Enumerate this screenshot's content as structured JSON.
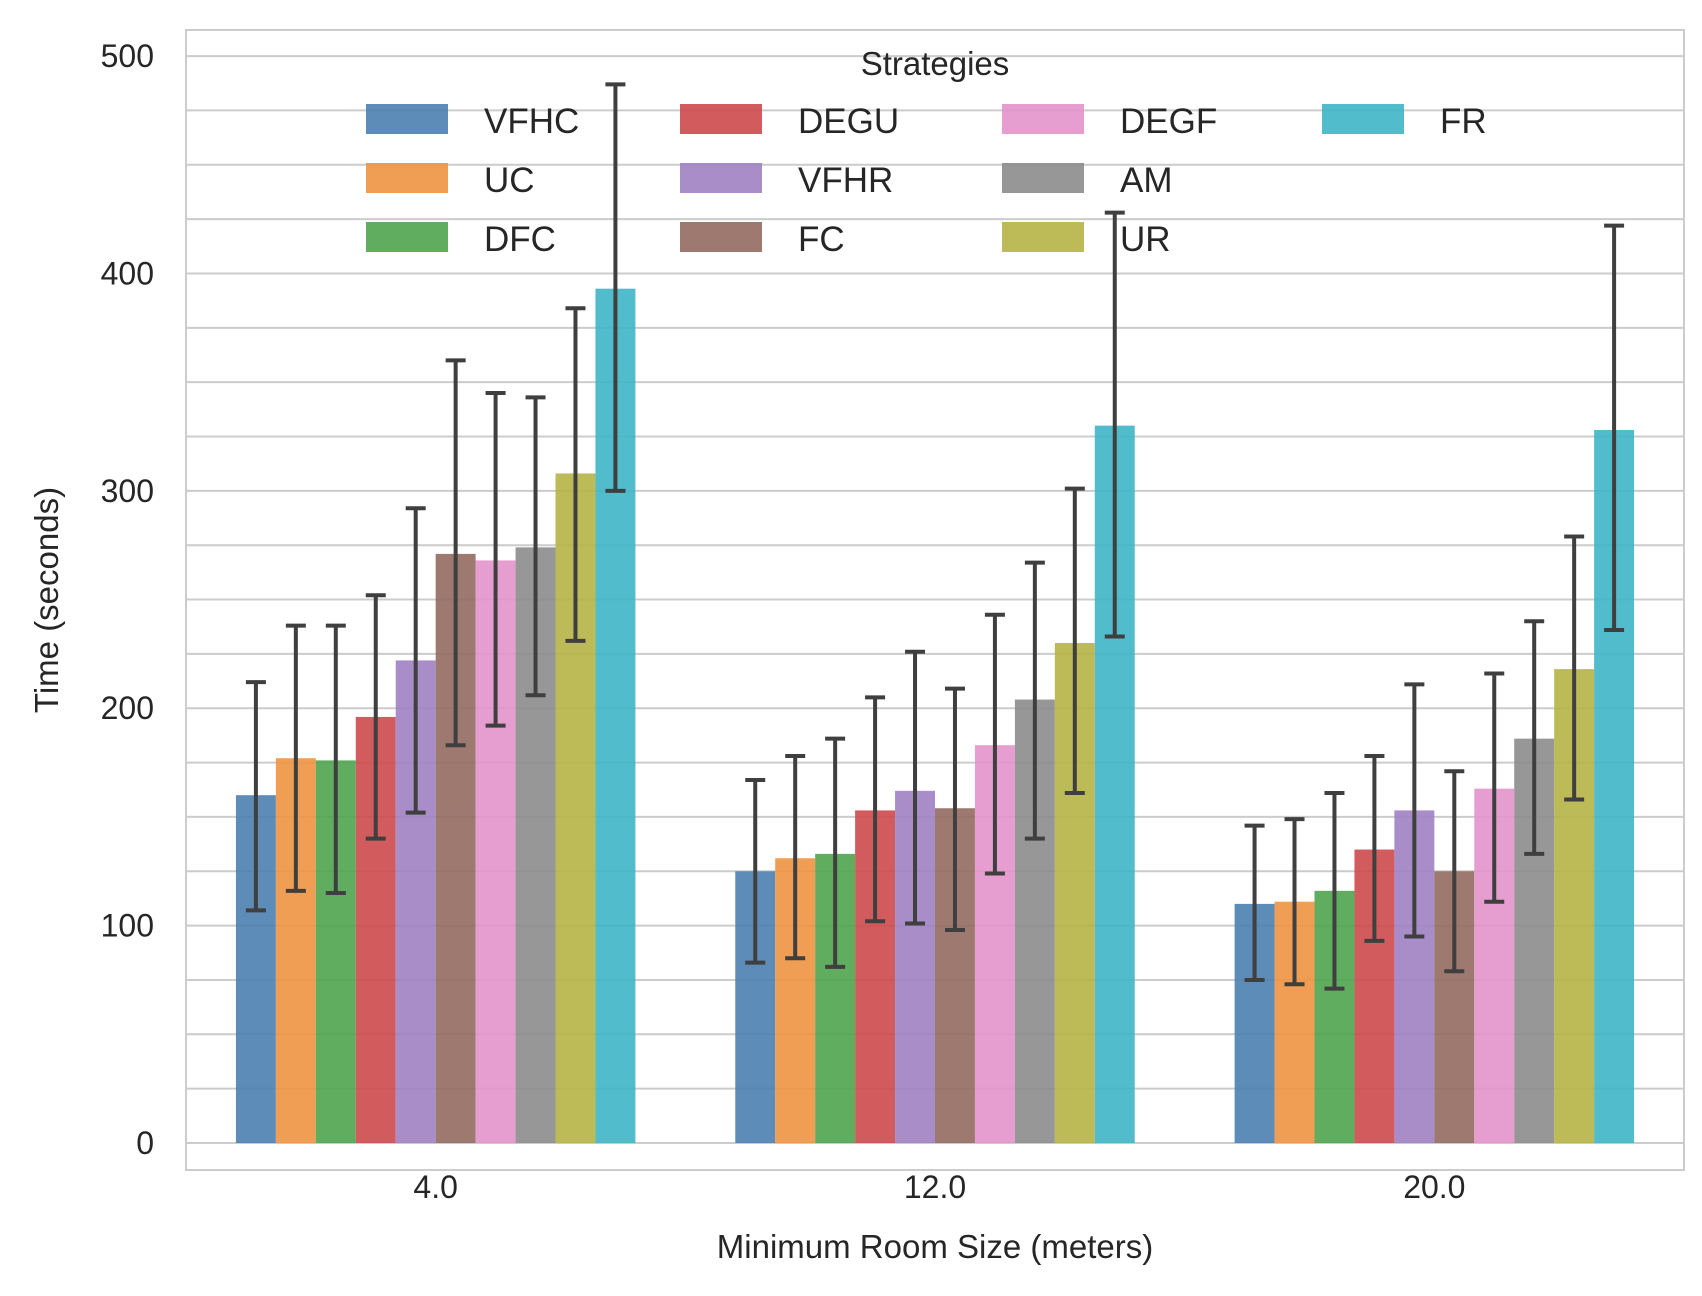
{
  "chart_data": {
    "type": "bar",
    "xlabel": "Minimum Room Size (meters)",
    "ylabel": "Time (seconds)",
    "categories": [
      "4.0",
      "12.0",
      "20.0"
    ],
    "ylim": [
      0,
      512
    ],
    "yticks": [
      0,
      100,
      200,
      300,
      400,
      500
    ],
    "grid": true,
    "legend": {
      "title": "Strategies",
      "placement": "top-center",
      "columns": 4
    },
    "series": [
      {
        "name": "VFHC",
        "color": "#4c7fb0",
        "values": [
          160,
          125,
          110
        ],
        "err_low": [
          107,
          83,
          75
        ],
        "err_high": [
          212,
          167,
          146
        ]
      },
      {
        "name": "UC",
        "color": "#ef9443",
        "values": [
          177,
          131,
          111
        ],
        "err_low": [
          116,
          85,
          73
        ],
        "err_high": [
          238,
          178,
          149
        ]
      },
      {
        "name": "DFC",
        "color": "#4fa44f",
        "values": [
          176,
          133,
          116
        ],
        "err_low": [
          115,
          81,
          71
        ],
        "err_high": [
          238,
          186,
          161
        ]
      },
      {
        "name": "DEGU",
        "color": "#cd4a4b",
        "values": [
          196,
          153,
          135
        ],
        "err_low": [
          140,
          102,
          93
        ],
        "err_high": [
          252,
          205,
          178
        ]
      },
      {
        "name": "VFHR",
        "color": "#a081c2",
        "values": [
          222,
          162,
          153
        ],
        "err_low": [
          152,
          101,
          95
        ],
        "err_high": [
          292,
          226,
          211
        ]
      },
      {
        "name": "FC",
        "color": "#936a61",
        "values": [
          271,
          154,
          125
        ],
        "err_low": [
          183,
          98,
          79
        ],
        "err_high": [
          360,
          209,
          171
        ]
      },
      {
        "name": "DEGF",
        "color": "#e393cb",
        "values": [
          268,
          183,
          163
        ],
        "err_low": [
          192,
          124,
          111
        ],
        "err_high": [
          345,
          243,
          216
        ]
      },
      {
        "name": "AM",
        "color": "#8c8c8c",
        "values": [
          274,
          204,
          186
        ],
        "err_low": [
          206,
          140,
          133
        ],
        "err_high": [
          343,
          267,
          240
        ]
      },
      {
        "name": "UR",
        "color": "#b5b445",
        "values": [
          308,
          230,
          218
        ],
        "err_low": [
          231,
          161,
          158
        ],
        "err_high": [
          384,
          301,
          279
        ]
      },
      {
        "name": "FR",
        "color": "#3db5c6",
        "values": [
          393,
          330,
          328
        ],
        "err_low": [
          300,
          233,
          236
        ],
        "err_high": [
          487,
          428,
          422
        ]
      }
    ]
  }
}
